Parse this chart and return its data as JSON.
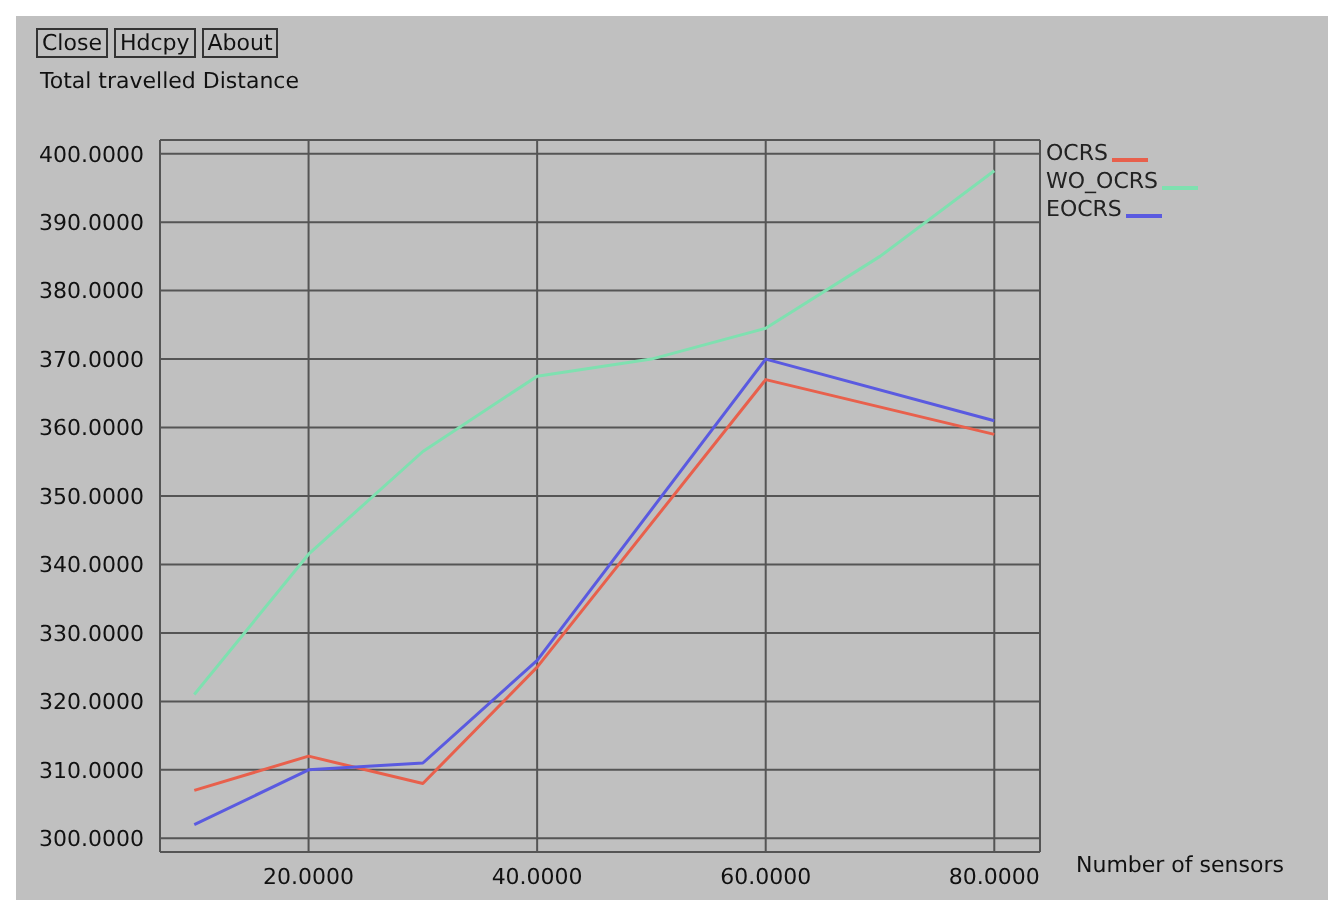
{
  "chart_data": {
    "type": "line",
    "ylabel": "Total travelled Distance",
    "xlabel": "Number of sensors",
    "annotations": [
      "Close",
      "Hdcpy",
      "About"
    ],
    "series": [
      {
        "name": "OCRS",
        "color": "#e8604c",
        "x": [
          10,
          20,
          30,
          40,
          60,
          80
        ],
        "values": [
          307,
          312,
          308,
          325,
          367,
          359
        ]
      },
      {
        "name": "WO_OCRS",
        "color": "#7fe0b0",
        "x": [
          10,
          20,
          30,
          40,
          50,
          60,
          70,
          80
        ],
        "values": [
          321,
          341.5,
          356.5,
          367.5,
          370,
          374.5,
          385,
          397.5
        ]
      },
      {
        "name": "EOCRS",
        "color": "#5a5ae0",
        "x": [
          10,
          20,
          30,
          40,
          60,
          80
        ],
        "values": [
          302,
          310,
          311,
          326,
          370,
          361
        ]
      }
    ],
    "xlim": [
      7,
      84
    ],
    "xticks": [
      {
        "value": 20,
        "label": "20.0000"
      },
      {
        "value": 40,
        "label": "40.0000"
      },
      {
        "value": 60,
        "label": "60.0000"
      },
      {
        "value": 80,
        "label": "80.0000"
      }
    ],
    "ylim": [
      298,
      402
    ],
    "yticks": [
      {
        "value": 300,
        "label": "300.0000"
      },
      {
        "value": 310,
        "label": "310.0000"
      },
      {
        "value": 320,
        "label": "320.0000"
      },
      {
        "value": 330,
        "label": "330.0000"
      },
      {
        "value": 340,
        "label": "340.0000"
      },
      {
        "value": 350,
        "label": "350.0000"
      },
      {
        "value": 360,
        "label": "360.0000"
      },
      {
        "value": 370,
        "label": "370.0000"
      },
      {
        "value": 380,
        "label": "380.0000"
      },
      {
        "value": 390,
        "label": "390.0000"
      },
      {
        "value": 400,
        "label": "400.0000"
      }
    ],
    "grid": true,
    "legend": "top right",
    "marker": "none",
    "line_style": "solid"
  }
}
